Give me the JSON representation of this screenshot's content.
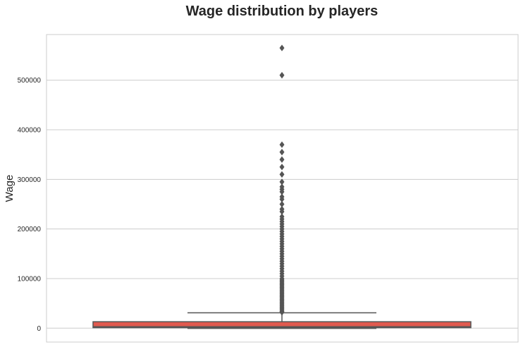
{
  "chart_data": {
    "type": "box",
    "title": "Wage distribution by players",
    "ylabel": "Wage",
    "xlabel": "",
    "ylim": [
      -28000,
      592000
    ],
    "yticks": [
      0,
      100000,
      200000,
      300000,
      400000,
      500000
    ],
    "ytick_labels": [
      "0",
      "100000",
      "200000",
      "300000",
      "400000",
      "500000"
    ],
    "grid": true,
    "box": {
      "min": 1000,
      "q1": 1000,
      "median": 3000,
      "q3": 13000,
      "whisker_low": 1000,
      "whisker_high": 31000,
      "fill_color": "#e05a4f",
      "line_color": "#555555"
    },
    "outliers": [
      565000,
      510000,
      370000,
      355000,
      340000,
      325000,
      310000,
      295000,
      285000,
      280000,
      275000,
      265000,
      260000,
      250000,
      240000,
      235000,
      225000,
      220000,
      215000,
      210000,
      205000,
      200000,
      195000,
      190000,
      185000,
      180000,
      175000,
      170000,
      165000,
      160000,
      155000,
      150000,
      145000,
      140000,
      135000,
      130000,
      125000,
      120000,
      115000,
      110000,
      105000,
      100000,
      97000,
      94000,
      91000,
      88000,
      85000,
      82000,
      79000,
      76000,
      73000,
      70000,
      67000,
      64000,
      61000,
      58000,
      55000,
      52000,
      49000,
      46000,
      43000,
      40000,
      37000,
      34000,
      32000
    ]
  }
}
